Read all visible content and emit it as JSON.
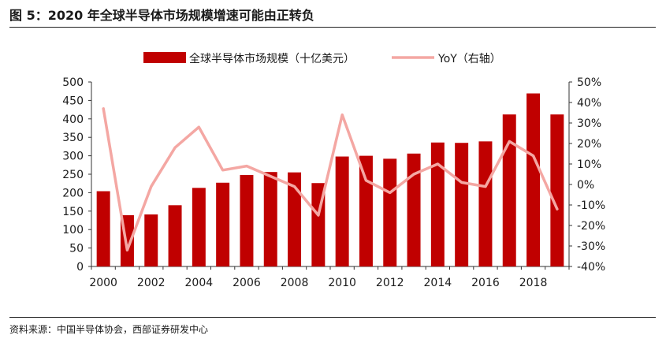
{
  "figure": {
    "title": "图 5：2020 年全球半导体市场规模增速可能由正转负",
    "source": "资料来源：中国半导体协会，西部证券研发中心"
  },
  "colors": {
    "bar": "#c00000",
    "line": "#f4a7a3"
  },
  "chart_data": {
    "type": "bar",
    "title": "",
    "xlabel": "",
    "ylabel": "",
    "x": [
      2000,
      2001,
      2002,
      2003,
      2004,
      2005,
      2006,
      2007,
      2008,
      2009,
      2010,
      2011,
      2012,
      2013,
      2014,
      2015,
      2016,
      2017,
      2018,
      2019
    ],
    "x_tick_labels": [
      "2000",
      "2002",
      "2004",
      "2006",
      "2008",
      "2010",
      "2012",
      "2014",
      "2016",
      "2018"
    ],
    "y_left": {
      "ylim": [
        0,
        500
      ],
      "ticks": [
        "0",
        "50",
        "100",
        "150",
        "200",
        "250",
        "300",
        "350",
        "400",
        "450",
        "500"
      ]
    },
    "y_right": {
      "ylim": [
        -40,
        50
      ],
      "ticks": [
        "-40%",
        "-30%",
        "-20%",
        "-10%",
        "0%",
        "10%",
        "20%",
        "30%",
        "40%",
        "50%"
      ]
    },
    "legend_position": "top",
    "grid": false,
    "series": [
      {
        "name": "全球半导体市场规模（十亿美元）",
        "type": "bar",
        "axis": "left",
        "values": [
          204,
          139,
          141,
          166,
          213,
          227,
          248,
          256,
          255,
          226,
          298,
          300,
          292,
          306,
          336,
          335,
          339,
          412,
          469,
          412
        ]
      },
      {
        "name": "YoY（右轴）",
        "type": "line",
        "axis": "right",
        "values": [
          37,
          -32,
          -1,
          18,
          28,
          7,
          9,
          4,
          -1,
          -15,
          34,
          2,
          -4,
          5,
          10,
          1,
          -1,
          21,
          14,
          -12
        ]
      }
    ]
  }
}
